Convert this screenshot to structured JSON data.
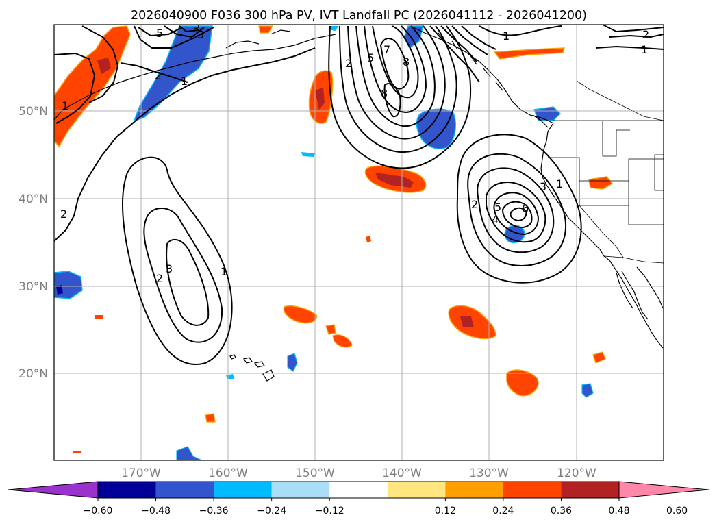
{
  "title": "2026040900 F036 300 hPa PV, IVT Landfall PC (2026041112 - 2026041200)",
  "lat_labels": [
    "50°N",
    "40°N",
    "30°N",
    "20°N"
  ],
  "lon_labels": [
    "170°W",
    "160°W",
    "150°W",
    "140°W",
    "130°W",
    "120°W"
  ],
  "colorbar": {
    "ticks": [
      "−0.60",
      "−0.48",
      "−0.36",
      "−0.24",
      "−0.12",
      "0.12",
      "0.24",
      "0.36",
      "0.48",
      "0.60"
    ],
    "colors": [
      "#9933cc",
      "#000099",
      "#3355cc",
      "#00bbff",
      "#aaddf7",
      "#ffffff",
      "#ffe680",
      "#ffa000",
      "#ff4400",
      "#b22222",
      "#ff88aa"
    ]
  },
  "contour_labels": {
    "w1": "1",
    "w2": "2",
    "w3": "3",
    "w4": "2",
    "n1": "5",
    "n2": "3",
    "n3": "2",
    "n4": "1",
    "c1": "2",
    "c2": "5",
    "c3": "7",
    "c4": "8",
    "c5": "8",
    "e1": "2",
    "e2": "5",
    "e3": "4",
    "e4": "6",
    "e5": "1",
    "e6": "3",
    "s1": "2",
    "s2": "3",
    "s3": "1",
    "ne1": "1",
    "ne2": "1",
    "ne3": "2"
  }
}
